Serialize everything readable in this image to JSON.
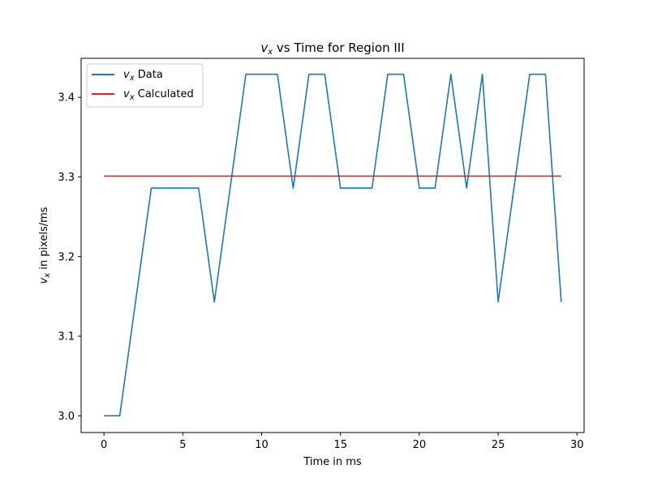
{
  "chart_data": {
    "type": "line",
    "title_var": "v",
    "title_sub": "x",
    "title_rest": " vs Time for Region III",
    "xlabel": "Time in ms",
    "ylabel_var": "v",
    "ylabel_sub": "x",
    "ylabel_rest": " in pixels/ms",
    "xlim": [
      -1.45,
      30.45
    ],
    "ylim": [
      2.979,
      3.449
    ],
    "xticks": [
      0,
      5,
      10,
      15,
      20,
      25,
      30
    ],
    "xtick_labels": [
      "0",
      "5",
      "10",
      "15",
      "20",
      "25",
      "30"
    ],
    "yticks": [
      3.0,
      3.1,
      3.2,
      3.3,
      3.4
    ],
    "ytick_labels": [
      "3.0",
      "3.1",
      "3.2",
      "3.3",
      "3.4"
    ],
    "grid": false,
    "legend_position": "top-left",
    "series": [
      {
        "name_var": "v",
        "name_sub": "x",
        "name_rest": " Data",
        "color": "#1f77b4",
        "x": [
          0,
          1,
          2,
          3,
          4,
          5,
          6,
          7,
          8,
          9,
          10,
          11,
          12,
          13,
          14,
          15,
          16,
          17,
          18,
          19,
          20,
          21,
          22,
          23,
          24,
          25,
          26,
          27,
          28,
          29
        ],
        "y": [
          3.0,
          3.0,
          3.143,
          3.286,
          3.286,
          3.286,
          3.286,
          3.143,
          3.286,
          3.429,
          3.429,
          3.429,
          3.286,
          3.429,
          3.429,
          3.286,
          3.286,
          3.286,
          3.429,
          3.429,
          3.286,
          3.286,
          3.429,
          3.286,
          3.429,
          3.143,
          3.286,
          3.429,
          3.429,
          3.143
        ]
      },
      {
        "name_var": "v",
        "name_sub": "x",
        "name_rest": " Calculated",
        "color": "#d62728",
        "x": [
          0,
          29
        ],
        "y": [
          3.301,
          3.301
        ]
      }
    ]
  }
}
